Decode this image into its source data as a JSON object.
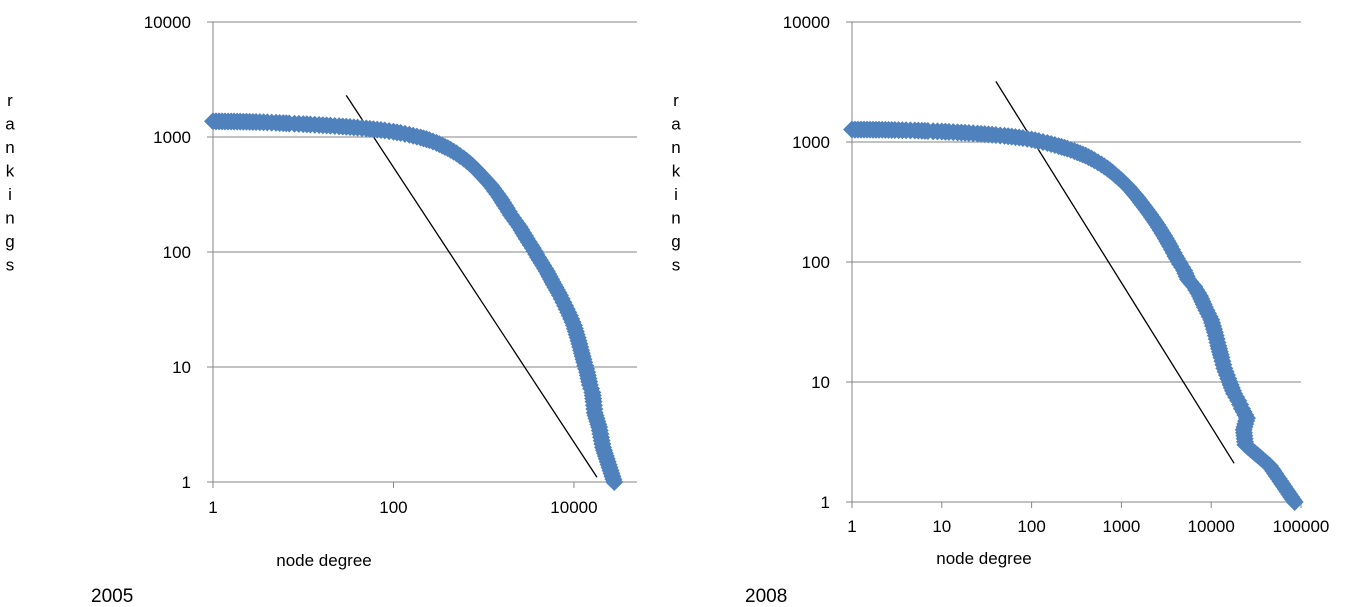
{
  "colors": {
    "marker": "#4f81bd",
    "grid": "#868686",
    "fit_line": "#000000"
  },
  "chart_data": [
    {
      "type": "scatter",
      "caption": "2005",
      "xlabel": "node degree",
      "ylabel": "rankings",
      "x_scale": "log10",
      "y_scale": "log10",
      "xlim": [
        1,
        50000
      ],
      "ylim": [
        1,
        10000
      ],
      "x_ticks": [
        "1",
        "100",
        "10000"
      ],
      "y_ticks": [
        "1",
        "10",
        "100",
        "1000",
        "10000"
      ],
      "grid": "horizontal major gridlines",
      "legend": "none",
      "marker": "diamond",
      "series": [
        {
          "points": [
            [
              1,
              1370
            ],
            [
              2,
              1360
            ],
            [
              3,
              1350
            ],
            [
              4,
              1340
            ],
            [
              5,
              1330
            ],
            [
              6,
              1320
            ],
            [
              7,
              1312
            ],
            [
              8,
              1305
            ],
            [
              10,
              1295
            ],
            [
              12,
              1285
            ],
            [
              15,
              1272
            ],
            [
              20,
              1255
            ],
            [
              25,
              1240
            ],
            [
              30,
              1228
            ],
            [
              40,
              1205
            ],
            [
              50,
              1185
            ],
            [
              60,
              1168
            ],
            [
              80,
              1140
            ],
            [
              100,
              1110
            ],
            [
              120,
              1085
            ],
            [
              150,
              1045
            ],
            [
              200,
              990
            ],
            [
              250,
              940
            ],
            [
              300,
              890
            ],
            [
              400,
              800
            ],
            [
              500,
              720
            ],
            [
              600,
              650
            ],
            [
              700,
              590
            ],
            [
              800,
              535
            ],
            [
              1000,
              445
            ],
            [
              1200,
              380
            ],
            [
              1500,
              300
            ],
            [
              1800,
              240
            ],
            [
              2000,
              210
            ],
            [
              2500,
              165
            ],
            [
              3000,
              130
            ],
            [
              3500,
              108
            ],
            [
              4000,
              90
            ],
            [
              5000,
              68
            ],
            [
              6000,
              52
            ],
            [
              7000,
              42
            ],
            [
              8000,
              34
            ],
            [
              9000,
              28
            ],
            [
              10000,
              23
            ],
            [
              11000,
              18
            ],
            [
              12000,
              14
            ],
            [
              13000,
              11
            ],
            [
              14000,
              9
            ],
            [
              15000,
              7
            ],
            [
              16000,
              6
            ],
            [
              16500,
              5
            ],
            [
              17000,
              4
            ],
            [
              19000,
              3
            ],
            [
              21000,
              2
            ],
            [
              28000,
              1
            ]
          ]
        }
      ],
      "fit_line": {
        "from": [
          30,
          2300
        ],
        "to": [
          18000,
          1.1
        ]
      }
    },
    {
      "type": "scatter",
      "caption": "2008",
      "xlabel": "node degree",
      "ylabel": "rankings",
      "x_scale": "log10",
      "y_scale": "log10",
      "xlim": [
        1,
        100000
      ],
      "ylim": [
        1,
        10000
      ],
      "x_ticks": [
        "1",
        "10",
        "100",
        "1000",
        "10000",
        "100000"
      ],
      "y_ticks": [
        "1",
        "10",
        "100",
        "1000",
        "10000"
      ],
      "grid": "horizontal major gridlines",
      "legend": "none",
      "marker": "diamond",
      "series": [
        {
          "points": [
            [
              1,
              1270
            ],
            [
              2,
              1265
            ],
            [
              3,
              1258
            ],
            [
              4,
              1252
            ],
            [
              5,
              1246
            ],
            [
              6,
              1240
            ],
            [
              7,
              1235
            ],
            [
              8,
              1230
            ],
            [
              10,
              1222
            ],
            [
              12,
              1214
            ],
            [
              15,
              1203
            ],
            [
              20,
              1188
            ],
            [
              25,
              1175
            ],
            [
              30,
              1163
            ],
            [
              40,
              1143
            ],
            [
              50,
              1125
            ],
            [
              60,
              1108
            ],
            [
              80,
              1080
            ],
            [
              100,
              1050
            ],
            [
              120,
              1020
            ],
            [
              150,
              980
            ],
            [
              200,
              925
            ],
            [
              250,
              880
            ],
            [
              300,
              840
            ],
            [
              400,
              770
            ],
            [
              500,
              705
            ],
            [
              600,
              650
            ],
            [
              700,
              600
            ],
            [
              800,
              555
            ],
            [
              1000,
              480
            ],
            [
              1200,
              420
            ],
            [
              1500,
              345
            ],
            [
              2000,
              260
            ],
            [
              2500,
              205
            ],
            [
              3000,
              165
            ],
            [
              3500,
              135
            ],
            [
              4000,
              112
            ],
            [
              4500,
              96
            ],
            [
              5000,
              85
            ],
            [
              5500,
              72
            ],
            [
              6500,
              62
            ],
            [
              7500,
              52
            ],
            [
              8500,
              42
            ],
            [
              10000,
              33
            ],
            [
              11000,
              26
            ],
            [
              12000,
              20
            ],
            [
              13000,
              16
            ],
            [
              14000,
              13
            ],
            [
              16000,
              10
            ],
            [
              18000,
              8
            ],
            [
              20000,
              7
            ],
            [
              22000,
              6
            ],
            [
              25000,
              5
            ],
            [
              23000,
              4
            ],
            [
              24000,
              3
            ],
            [
              45000,
              2
            ],
            [
              85000,
              1
            ]
          ]
        }
      ],
      "fit_line": {
        "from": [
          40,
          3200
        ],
        "to": [
          18000,
          2.1
        ]
      }
    }
  ]
}
